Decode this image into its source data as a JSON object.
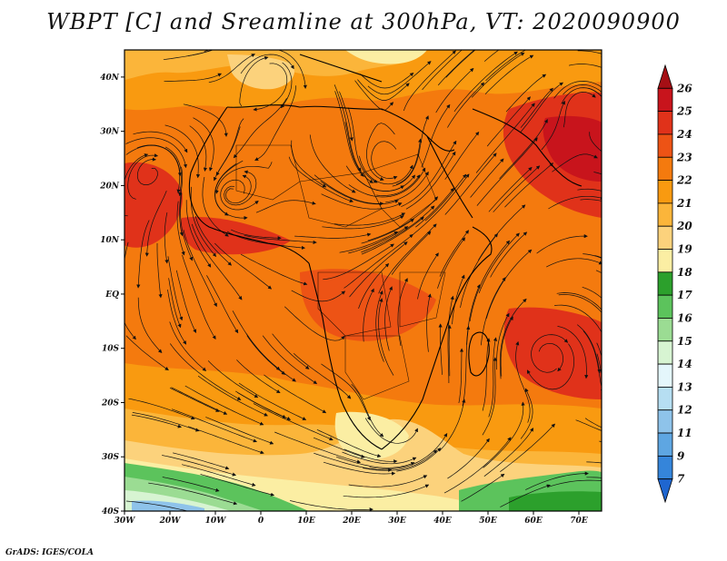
{
  "title": "WBPT [C] and Sreamline at 300hPa, VT: 2020090900",
  "credit": "GrADS: IGES/COLA",
  "map": {
    "lat_labels": [
      "40N",
      "30N",
      "20N",
      "10N",
      "EQ",
      "10S",
      "20S",
      "30S",
      "40S"
    ],
    "lon_labels": [
      "30W",
      "20W",
      "10W",
      "0",
      "10E",
      "20E",
      "30E",
      "40E",
      "50E",
      "60E",
      "70E"
    ],
    "lat_range": [
      -40,
      45
    ],
    "lon_range": [
      -30,
      75
    ]
  },
  "colorbar": {
    "labels": [
      "26",
      "25",
      "24",
      "23",
      "22",
      "21",
      "20",
      "19",
      "18",
      "17",
      "16",
      "15",
      "14",
      "13",
      "12",
      "11",
      "9",
      "7"
    ],
    "colors": [
      "#a50f15",
      "#c8141c",
      "#e0321a",
      "#ed5315",
      "#f47a0e",
      "#f99a10",
      "#fbb53a",
      "#fcd27c",
      "#fbeea3",
      "#2ca02c",
      "#5cc35c",
      "#9bdc93",
      "#d7f4d2",
      "#e4f6fb",
      "#b6def2",
      "#8ec3ea",
      "#5ea6e2",
      "#3585da",
      "#1f66d0"
    ]
  }
}
